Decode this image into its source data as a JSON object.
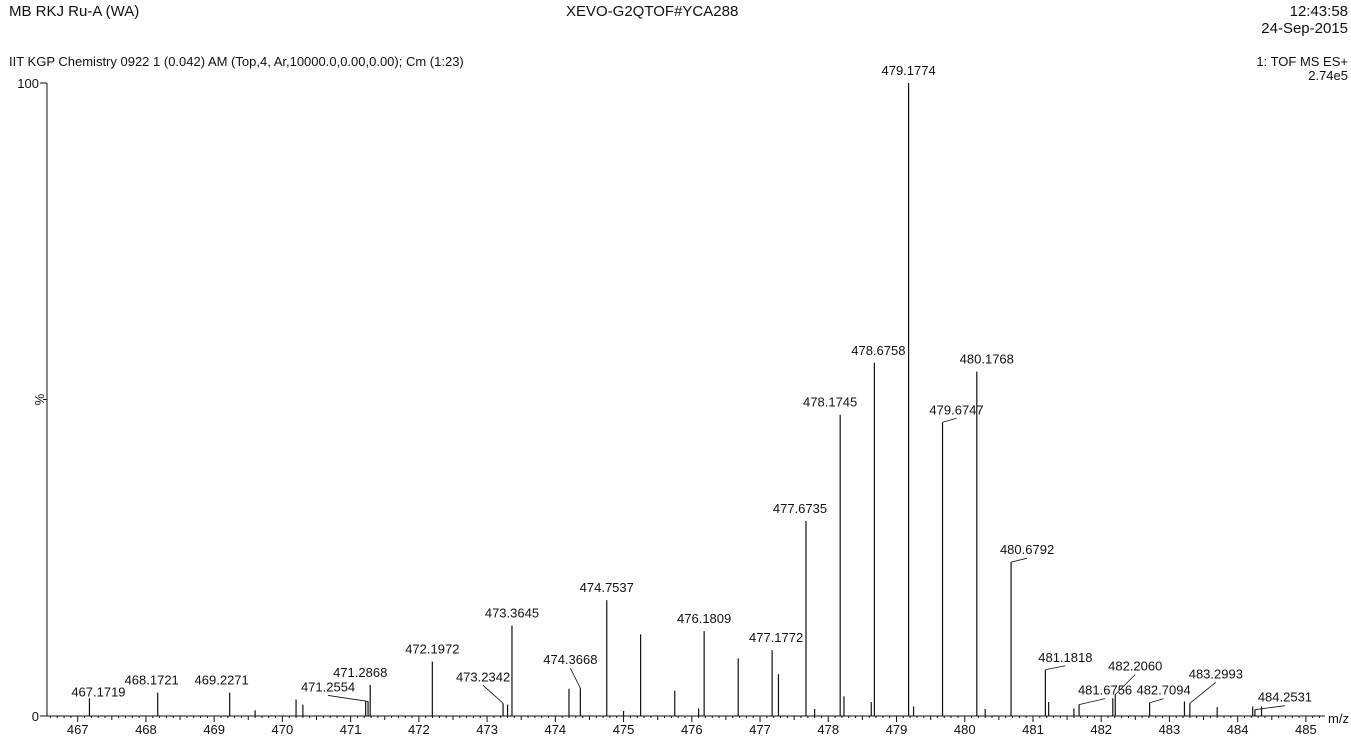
{
  "header": {
    "sample": "MB RKJ Ru-A (WA)",
    "instrument": "XEVO-G2QTOF#YCA288",
    "time": "12:43:58",
    "date": "24-Sep-2015",
    "description": "IIT KGP Chemistry 0922 1 (0.042) AM (Top,4, Ar,10000.0,0.00,0.00); Cm (1:23)",
    "mode": "1: TOF MS ES+",
    "intensity": "2.74e5"
  },
  "chart_data": {
    "type": "bar",
    "xlabel": "m/z",
    "ylabel": "%",
    "xlim": [
      466.55,
      485.28
    ],
    "ylim": [
      0,
      100
    ],
    "x_ticks": [
      467,
      468,
      469,
      470,
      471,
      472,
      473,
      474,
      475,
      476,
      477,
      478,
      479,
      480,
      481,
      482,
      483,
      484,
      485
    ],
    "y_tick_labels": [
      "0",
      "100"
    ],
    "labeled_peaks": [
      {
        "mz": 467.1719,
        "intensity": 2.8,
        "label": "467.1719"
      },
      {
        "mz": 468.1721,
        "intensity": 3.7,
        "label": "468.1721"
      },
      {
        "mz": 469.2271,
        "intensity": 3.7,
        "label": "469.2271"
      },
      {
        "mz": 471.2554,
        "intensity": 2.3,
        "label": "471.2554"
      },
      {
        "mz": 471.2868,
        "intensity": 4.9,
        "label": "471.2868"
      },
      {
        "mz": 472.1972,
        "intensity": 8.6,
        "label": "472.1972"
      },
      {
        "mz": 473.2342,
        "intensity": 2.0,
        "label": "473.2342"
      },
      {
        "mz": 473.3645,
        "intensity": 14.3,
        "label": "473.3645"
      },
      {
        "mz": 474.3668,
        "intensity": 4.4,
        "label": "474.3668"
      },
      {
        "mz": 474.7537,
        "intensity": 18.3,
        "label": "474.7537"
      },
      {
        "mz": 476.1809,
        "intensity": 13.4,
        "label": "476.1809"
      },
      {
        "mz": 477.1772,
        "intensity": 10.4,
        "label": "477.1772"
      },
      {
        "mz": 477.6735,
        "intensity": 30.8,
        "label": "477.6735"
      },
      {
        "mz": 478.1745,
        "intensity": 47.6,
        "label": "478.1745"
      },
      {
        "mz": 478.6758,
        "intensity": 55.8,
        "label": "478.6758"
      },
      {
        "mz": 479.1774,
        "intensity": 100.0,
        "label": "479.1774"
      },
      {
        "mz": 479.6747,
        "intensity": 46.4,
        "label": "479.6747"
      },
      {
        "mz": 480.1768,
        "intensity": 54.4,
        "label": "480.1768"
      },
      {
        "mz": 480.6792,
        "intensity": 24.3,
        "label": "480.6792"
      },
      {
        "mz": 481.1818,
        "intensity": 7.3,
        "label": "481.1818"
      },
      {
        "mz": 481.6756,
        "intensity": 1.8,
        "label": "481.6756"
      },
      {
        "mz": 482.206,
        "intensity": 3.4,
        "label": "482.2060"
      },
      {
        "mz": 482.7094,
        "intensity": 2.1,
        "label": "482.7094"
      },
      {
        "mz": 483.2993,
        "intensity": 2.0,
        "label": "483.2993"
      },
      {
        "mz": 484.2531,
        "intensity": 1.0,
        "label": "484.2531"
      }
    ],
    "unlabeled_peaks": [
      {
        "mz": 475.25,
        "intensity": 12.9
      },
      {
        "mz": 476.68,
        "intensity": 9.1
      },
      {
        "mz": 477.27,
        "intensity": 6.6
      },
      {
        "mz": 475.75,
        "intensity": 4.0
      },
      {
        "mz": 474.2,
        "intensity": 4.3
      },
      {
        "mz": 470.2,
        "intensity": 2.6
      },
      {
        "mz": 470.3,
        "intensity": 1.8
      },
      {
        "mz": 471.22,
        "intensity": 2.3
      },
      {
        "mz": 473.3,
        "intensity": 1.8
      },
      {
        "mz": 478.23,
        "intensity": 3.1
      },
      {
        "mz": 478.63,
        "intensity": 2.2
      },
      {
        "mz": 479.25,
        "intensity": 1.5
      },
      {
        "mz": 481.23,
        "intensity": 2.2
      },
      {
        "mz": 482.17,
        "intensity": 2.8
      },
      {
        "mz": 483.22,
        "intensity": 2.3
      },
      {
        "mz": 484.22,
        "intensity": 1.5
      },
      {
        "mz": 483.7,
        "intensity": 1.4
      },
      {
        "mz": 484.35,
        "intensity": 1.5
      },
      {
        "mz": 469.6,
        "intensity": 0.9
      },
      {
        "mz": 475.0,
        "intensity": 0.8
      },
      {
        "mz": 476.1,
        "intensity": 1.2
      },
      {
        "mz": 477.8,
        "intensity": 1.1
      },
      {
        "mz": 480.3,
        "intensity": 1.1
      },
      {
        "mz": 481.6,
        "intensity": 1.2
      }
    ]
  }
}
